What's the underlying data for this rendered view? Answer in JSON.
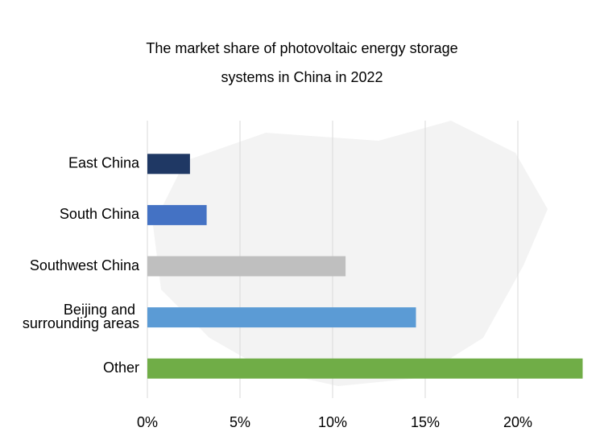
{
  "chart_data": {
    "type": "bar",
    "orientation": "horizontal",
    "title": "The market share of photovoltaic energy storage systems in China in 2022",
    "categories": [
      "East China",
      "South China",
      "Southwest China",
      "Beijing and surrounding areas",
      "Other"
    ],
    "values": [
      2.3,
      3.2,
      10.7,
      14.5,
      23.5
    ],
    "colors": [
      "#1f3864",
      "#4472c4",
      "#bfbfbf",
      "#5b9bd5",
      "#70ad47"
    ],
    "xlim": [
      0,
      24
    ],
    "xticks": [
      {
        "value": 0,
        "label": "0%"
      },
      {
        "value": 5,
        "label": "5%"
      },
      {
        "value": 10,
        "label": "10%"
      },
      {
        "value": 15,
        "label": "15%"
      },
      {
        "value": 20,
        "label": "20%"
      }
    ],
    "grid": true
  }
}
